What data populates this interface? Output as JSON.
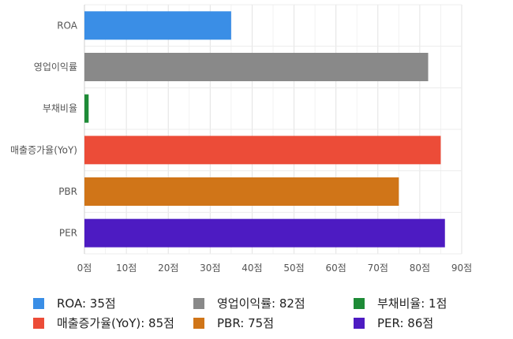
{
  "chart_data": {
    "type": "bar",
    "orientation": "horizontal",
    "categories": [
      "ROA",
      "영업이익률",
      "부채비율",
      "매출증가율(YoY)",
      "PBR",
      "PER"
    ],
    "values": [
      35,
      82,
      1,
      85,
      75,
      86
    ],
    "colors": [
      "#3a8ee6",
      "#898989",
      "#1e8b37",
      "#ec4c38",
      "#d07518",
      "#4d1bc2"
    ],
    "xlim": [
      0,
      90
    ],
    "xticks": [
      "0점",
      "10점",
      "20점",
      "30점",
      "40점",
      "50점",
      "60점",
      "70점",
      "80점",
      "90점"
    ],
    "grid": true,
    "legend_position": "bottom"
  },
  "legend": [
    {
      "label": "ROA: 35점",
      "color": "#3a8ee6"
    },
    {
      "label": "영업이익률: 82점",
      "color": "#898989"
    },
    {
      "label": "부채비율: 1점",
      "color": "#1e8b37"
    },
    {
      "label": "매출증가율(YoY): 85점",
      "color": "#ec4c38"
    },
    {
      "label": "PBR: 75점",
      "color": "#d07518"
    },
    {
      "label": "PER: 86점",
      "color": "#4d1bc2"
    }
  ]
}
